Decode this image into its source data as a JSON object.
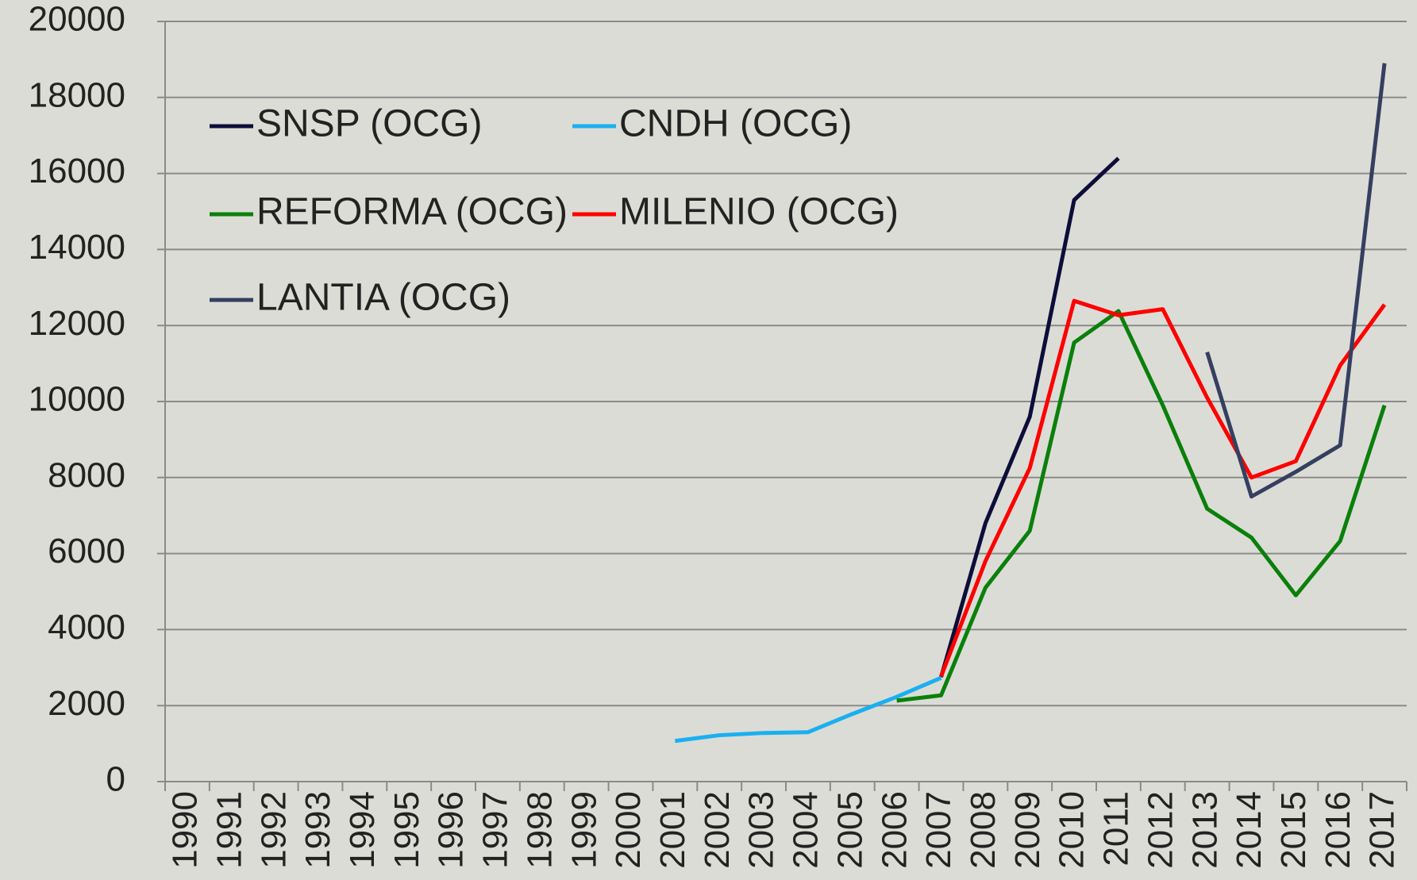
{
  "chart_data": {
    "type": "line",
    "categories": [
      "1990",
      "1991",
      "1992",
      "1993",
      "1994",
      "1995",
      "1996",
      "1997",
      "1998",
      "1999",
      "2000",
      "2001",
      "2002",
      "2003",
      "2004",
      "2005",
      "2006",
      "2007",
      "2008",
      "2009",
      "2010",
      "2011",
      "2012",
      "2013",
      "2014",
      "2015",
      "2016",
      "2017"
    ],
    "series": [
      {
        "name": "SNSP (OCG)",
        "color": "#0d0d3a",
        "values": [
          null,
          null,
          null,
          null,
          null,
          null,
          null,
          null,
          null,
          null,
          null,
          null,
          null,
          null,
          null,
          null,
          null,
          2750,
          6800,
          9600,
          15300,
          16400,
          null,
          null,
          null,
          null,
          null,
          null
        ]
      },
      {
        "name": "CNDH (OCG)",
        "color": "#1ab0f0",
        "values": [
          null,
          null,
          null,
          null,
          null,
          null,
          null,
          null,
          null,
          null,
          null,
          1070,
          1220,
          1280,
          1300,
          1780,
          2230,
          2730,
          null,
          null,
          null,
          null,
          null,
          null,
          null,
          null,
          null,
          null
        ]
      },
      {
        "name": "REFORMA (OCG)",
        "color": "#0a800a",
        "values": [
          null,
          null,
          null,
          null,
          null,
          null,
          null,
          null,
          null,
          null,
          null,
          null,
          null,
          null,
          null,
          null,
          2130,
          2270,
          5100,
          6600,
          11550,
          12380,
          9900,
          7180,
          6420,
          4900,
          6330,
          9900
        ]
      },
      {
        "name": "MILENIO (OCG)",
        "color": "#ff0000",
        "values": [
          null,
          null,
          null,
          null,
          null,
          null,
          null,
          null,
          null,
          null,
          null,
          null,
          null,
          null,
          null,
          null,
          null,
          2770,
          5800,
          8250,
          12650,
          12270,
          12430,
          10100,
          8000,
          8430,
          10950,
          12550
        ]
      },
      {
        "name": "LANTIA (OCG)",
        "color": "#354060",
        "values": [
          null,
          null,
          null,
          null,
          null,
          null,
          null,
          null,
          null,
          null,
          null,
          null,
          null,
          null,
          null,
          null,
          null,
          null,
          null,
          null,
          null,
          null,
          null,
          11300,
          7500,
          8150,
          8850,
          18900
        ]
      }
    ],
    "ylim": [
      0,
      20000
    ],
    "yticks": [
      0,
      2000,
      4000,
      6000,
      8000,
      10000,
      12000,
      14000,
      16000,
      18000,
      20000
    ],
    "grid": true
  }
}
